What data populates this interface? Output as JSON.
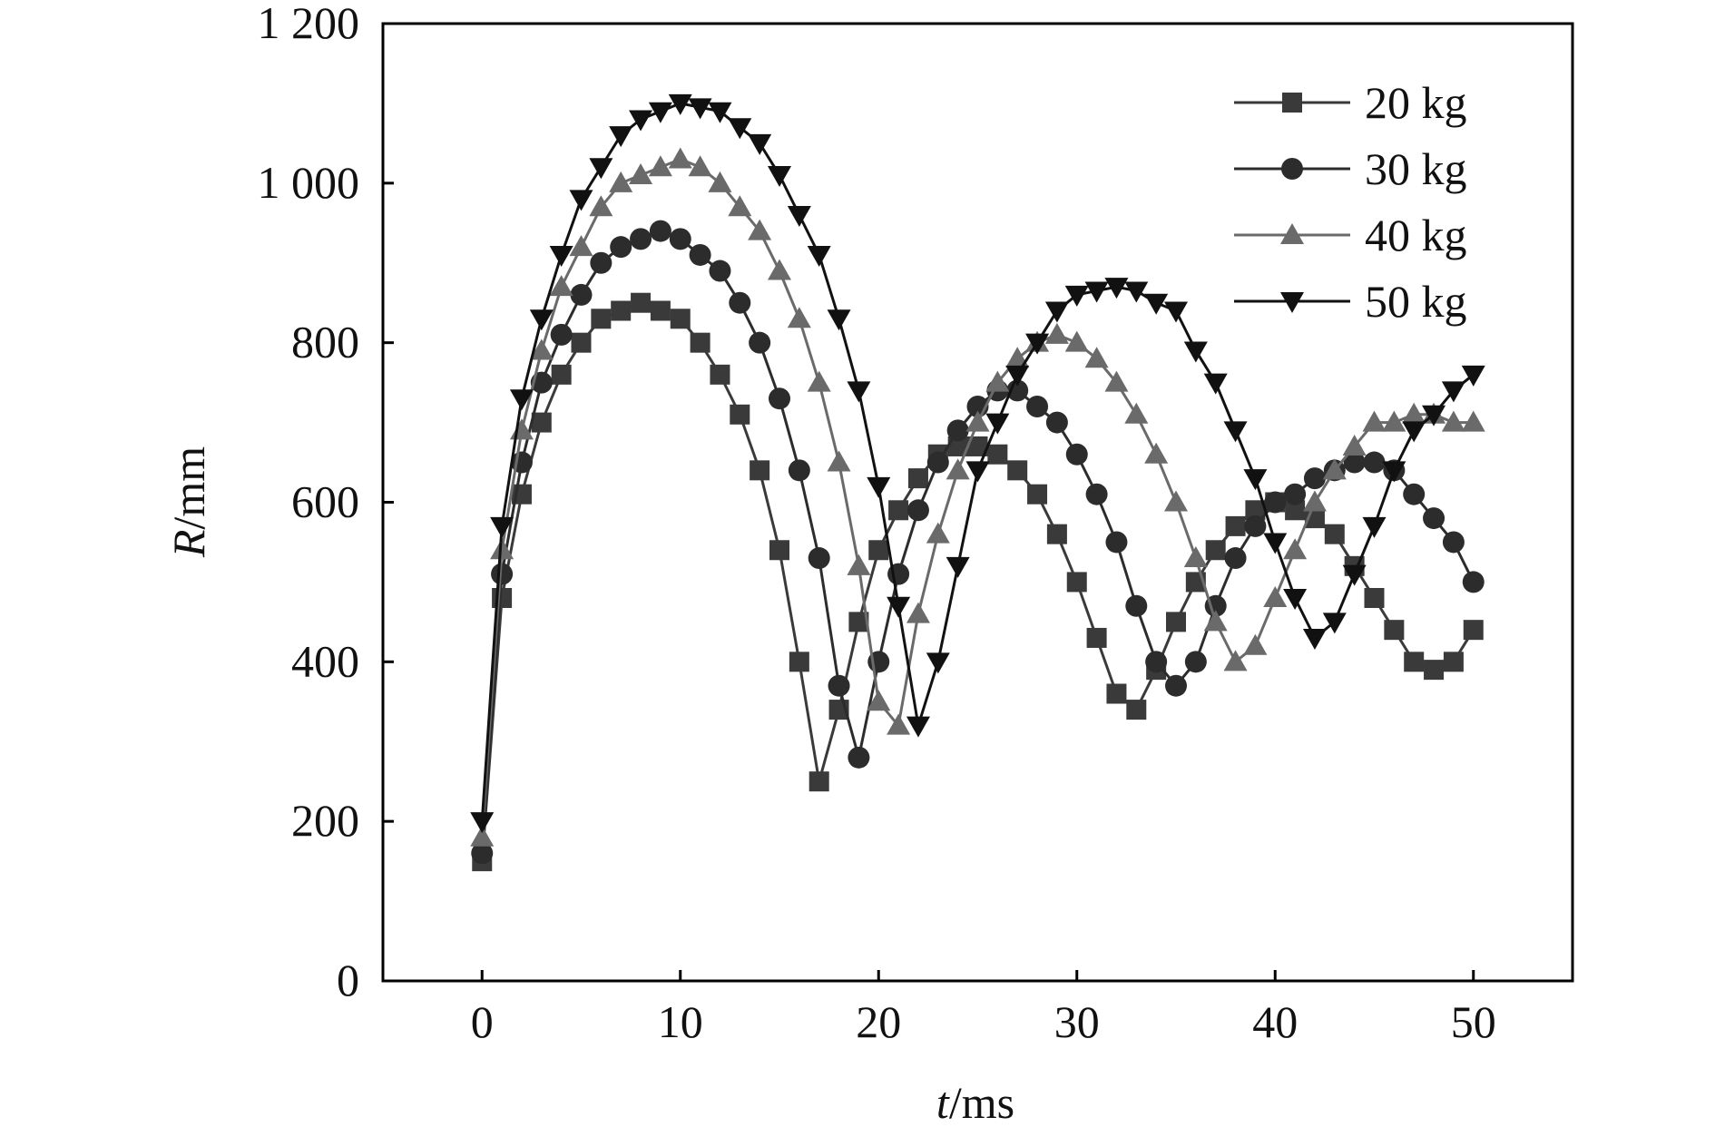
{
  "chart_data": {
    "type": "line",
    "title": "",
    "xlabel": {
      "var": "t",
      "unit": "/ms"
    },
    "ylabel": {
      "var": "R",
      "unit": "/mm"
    },
    "xlim": [
      -5,
      55
    ],
    "ylim": [
      0,
      1200
    ],
    "xticks": [
      0,
      10,
      20,
      30,
      40,
      50
    ],
    "xtick_labels": [
      "0",
      "10",
      "20",
      "30",
      "40",
      "50"
    ],
    "yticks": [
      0,
      200,
      400,
      600,
      800,
      1000,
      1200
    ],
    "ytick_labels": [
      "0",
      "200",
      "400",
      "600",
      "800",
      "1 000",
      "1 200"
    ],
    "grid": false,
    "legend_position": "top-right",
    "x": [
      0,
      1,
      2,
      3,
      4,
      5,
      6,
      7,
      8,
      9,
      10,
      11,
      12,
      13,
      14,
      15,
      16,
      17,
      18,
      19,
      20,
      21,
      22,
      23,
      24,
      25,
      26,
      27,
      28,
      29,
      30,
      31,
      32,
      33,
      34,
      35,
      36,
      37,
      38,
      39,
      40,
      41,
      42,
      43,
      44,
      45,
      46,
      47,
      48,
      49,
      50
    ],
    "series": [
      {
        "name": "20 kg",
        "marker": "square",
        "color": "#3a3a3a",
        "values": [
          150,
          480,
          610,
          700,
          760,
          800,
          830,
          840,
          850,
          840,
          830,
          800,
          760,
          710,
          640,
          540,
          400,
          250,
          340,
          450,
          540,
          590,
          630,
          660,
          670,
          670,
          660,
          640,
          610,
          560,
          500,
          430,
          360,
          340,
          390,
          450,
          500,
          540,
          570,
          590,
          600,
          590,
          580,
          560,
          520,
          480,
          440,
          400,
          390,
          400,
          440
        ]
      },
      {
        "name": "30 kg",
        "marker": "circle",
        "color": "#2c2c2c",
        "values": [
          160,
          510,
          650,
          750,
          810,
          860,
          900,
          920,
          930,
          940,
          930,
          910,
          890,
          850,
          800,
          730,
          640,
          530,
          370,
          280,
          400,
          510,
          590,
          650,
          690,
          720,
          740,
          740,
          720,
          700,
          660,
          610,
          550,
          470,
          400,
          370,
          400,
          470,
          530,
          570,
          600,
          610,
          630,
          640,
          650,
          650,
          640,
          610,
          580,
          550,
          500
        ]
      },
      {
        "name": "40 kg",
        "marker": "triangle-up",
        "color": "#6a6a6a",
        "values": [
          180,
          540,
          690,
          790,
          870,
          920,
          970,
          1000,
          1010,
          1020,
          1030,
          1020,
          1000,
          970,
          940,
          890,
          830,
          750,
          650,
          520,
          350,
          320,
          460,
          560,
          640,
          700,
          750,
          780,
          800,
          810,
          800,
          780,
          750,
          710,
          660,
          600,
          530,
          450,
          400,
          420,
          480,
          540,
          600,
          640,
          670,
          700,
          700,
          710,
          710,
          700,
          700
        ]
      },
      {
        "name": "50 kg",
        "marker": "triangle-down",
        "color": "#111111",
        "values": [
          200,
          570,
          730,
          830,
          910,
          980,
          1020,
          1060,
          1080,
          1090,
          1100,
          1095,
          1090,
          1070,
          1050,
          1010,
          960,
          910,
          830,
          740,
          620,
          470,
          320,
          400,
          520,
          640,
          700,
          760,
          800,
          840,
          860,
          865,
          870,
          865,
          850,
          840,
          790,
          750,
          690,
          630,
          550,
          480,
          430,
          450,
          510,
          570,
          640,
          690,
          710,
          740,
          760
        ]
      }
    ]
  }
}
